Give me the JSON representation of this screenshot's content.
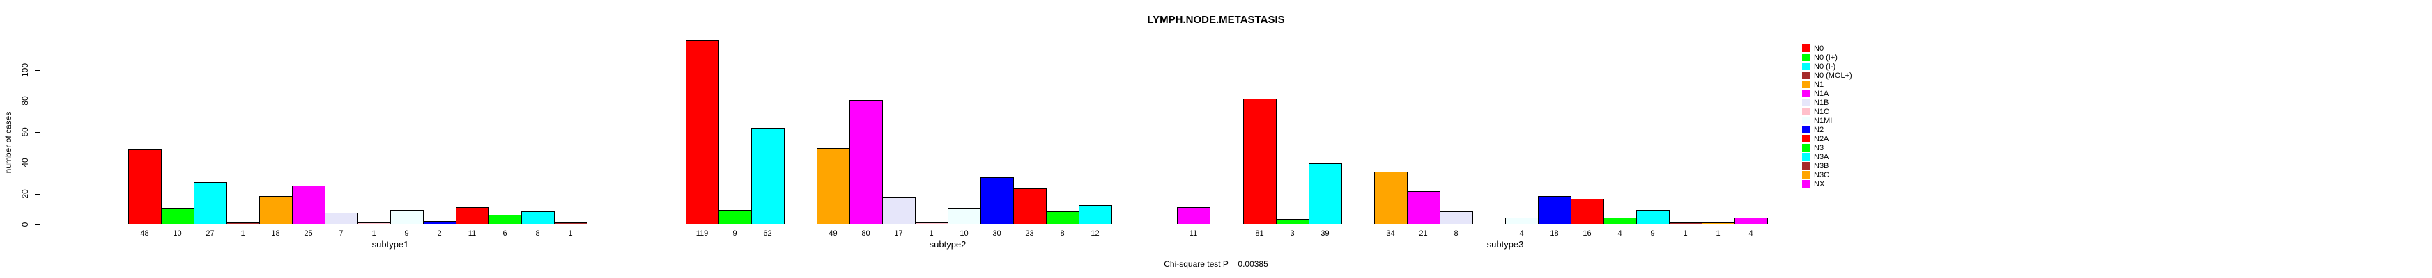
{
  "title": "LYMPH.NODE.METASTASIS",
  "annotation": "Chi-square test P = 0.00385",
  "y_axis": {
    "label": "number of cases",
    "ticks": [
      0,
      20,
      40,
      60,
      80,
      100
    ]
  },
  "x_axis": {
    "group_labels": [
      "subtype1",
      "subtype2",
      "subtype3"
    ]
  },
  "chart_data": {
    "type": "bar",
    "title": "LYMPH.NODE.METASTASIS",
    "xlabel": "",
    "ylabel": "number of cases",
    "ylim": [
      0,
      100
    ],
    "y_ticks": [
      0,
      20,
      40,
      60,
      80,
      100
    ],
    "grid": false,
    "legend_position": "right",
    "annotation": "Chi-square test P = 0.00385",
    "categories": [
      "subtype1",
      "subtype2",
      "subtype3"
    ],
    "series": [
      {
        "name": "N0",
        "color": "#FF0000",
        "values": [
          48,
          119,
          81
        ]
      },
      {
        "name": "N0 (I+)",
        "color": "#00FF00",
        "values": [
          10,
          9,
          3
        ]
      },
      {
        "name": "N0 (I-)",
        "color": "#00FFFF",
        "values": [
          27,
          62,
          39
        ]
      },
      {
        "name": "N0 (MOL+)",
        "color": "#A52A2A",
        "values": [
          1,
          0,
          0
        ]
      },
      {
        "name": "N1",
        "color": "#FFA500",
        "values": [
          18,
          49,
          34
        ]
      },
      {
        "name": "N1A",
        "color": "#FF00FF",
        "values": [
          25,
          80,
          21
        ]
      },
      {
        "name": "N1B",
        "color": "#E6E6FA",
        "values": [
          7,
          17,
          8
        ]
      },
      {
        "name": "N1C",
        "color": "#FFC0CB",
        "values": [
          1,
          1,
          0
        ]
      },
      {
        "name": "N1MI",
        "color": "#F0FFFF",
        "values": [
          9,
          10,
          4
        ]
      },
      {
        "name": "N2",
        "color": "#0000FF",
        "values": [
          2,
          30,
          18
        ]
      },
      {
        "name": "N2A",
        "color": "#FF0000",
        "values": [
          11,
          23,
          16
        ]
      },
      {
        "name": "N3",
        "color": "#00FF00",
        "values": [
          6,
          8,
          4
        ]
      },
      {
        "name": "N3A",
        "color": "#00FFFF",
        "values": [
          8,
          12,
          9
        ]
      },
      {
        "name": "N3B",
        "color": "#A52A2A",
        "values": [
          1,
          0,
          1
        ]
      },
      {
        "name": "N3C",
        "color": "#FFA500",
        "values": [
          0,
          0,
          1
        ]
      },
      {
        "name": "NX",
        "color": "#FF00FF",
        "values": [
          0,
          11,
          4
        ]
      }
    ]
  }
}
